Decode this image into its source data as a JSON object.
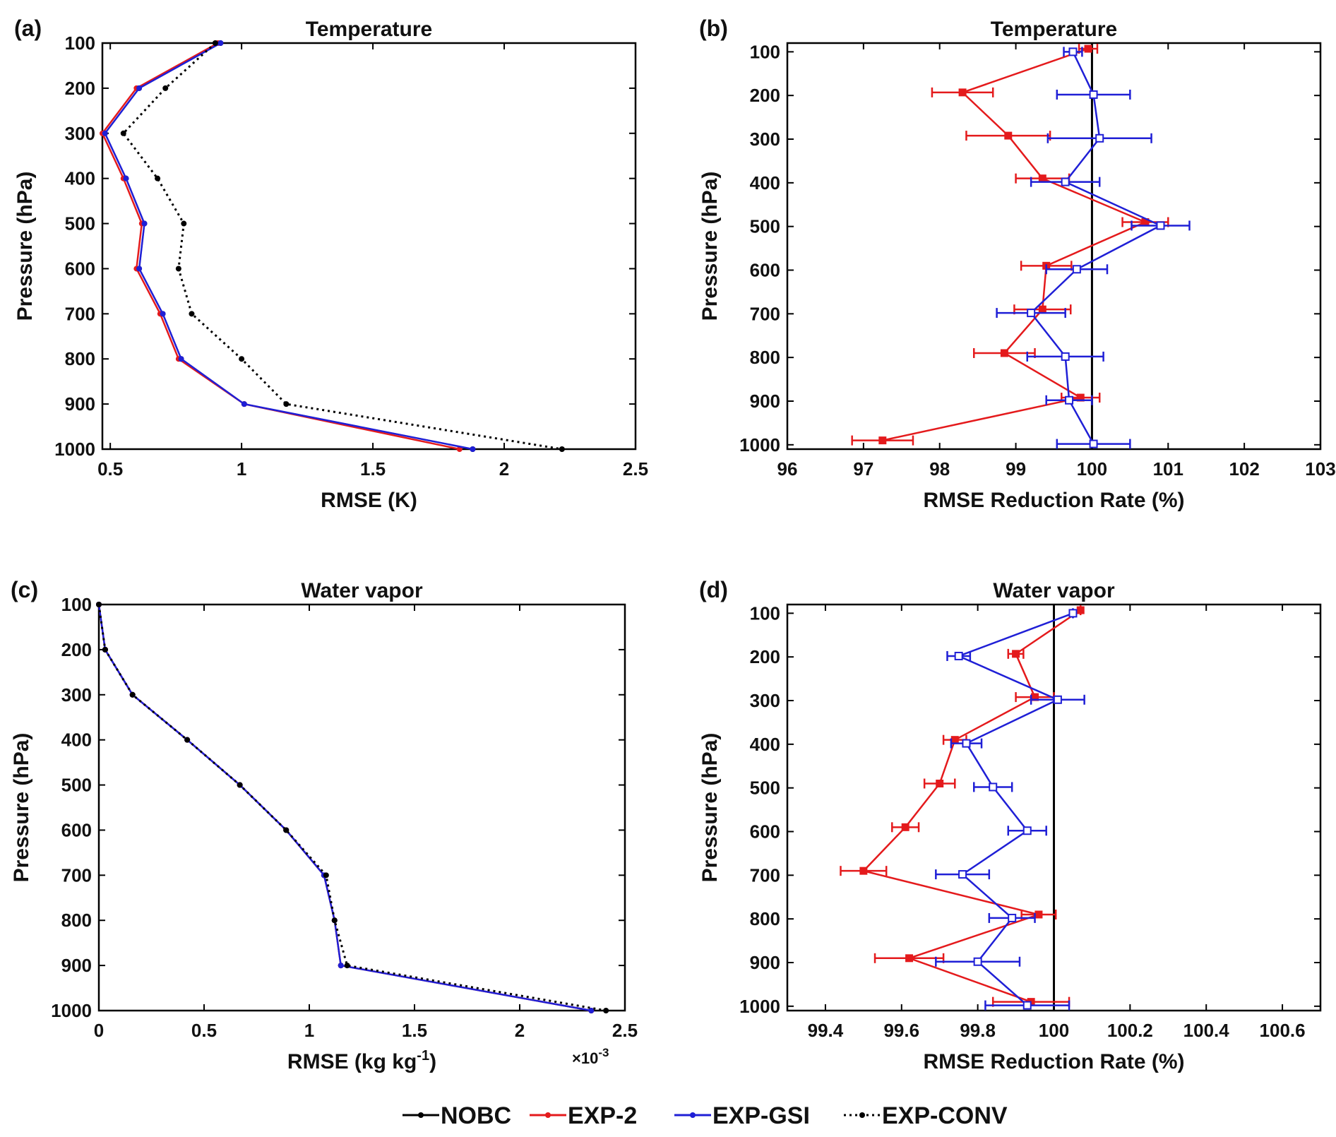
{
  "colors": {
    "NOBC": "#000000",
    "EXP-2": "#e41a1c",
    "EXP-GSI": "#1f1fd6",
    "EXP-CONV": "#000000"
  },
  "legend": [
    "NOBC",
    "EXP-2",
    "EXP-GSI",
    "EXP-CONV"
  ],
  "chart_data": [
    {
      "panel_label": "(a)",
      "type": "line",
      "title": "Temperature",
      "xlabel": "RMSE (K)",
      "ylabel": "Pressure (hPa)",
      "xlim": [
        0.47,
        2.5
      ],
      "ylim": [
        1000,
        100
      ],
      "xticks": [
        "0.5",
        "1",
        "1.5",
        "2",
        "2.5"
      ],
      "xtick_values": [
        0.5,
        1,
        1.5,
        2,
        2.5
      ],
      "yticks": [
        "100",
        "200",
        "300",
        "400",
        "500",
        "600",
        "700",
        "800",
        "900",
        "1000"
      ],
      "y": [
        100,
        200,
        300,
        400,
        500,
        600,
        700,
        800,
        900,
        1000
      ],
      "series": [
        {
          "name": "NOBC",
          "values": [
            0.92,
            0.61,
            0.48,
            0.56,
            0.63,
            0.61,
            0.7,
            0.77,
            1.01,
            1.88
          ]
        },
        {
          "name": "EXP-2",
          "values": [
            0.91,
            0.6,
            0.47,
            0.55,
            0.62,
            0.6,
            0.69,
            0.76,
            1.01,
            1.83
          ]
        },
        {
          "name": "EXP-GSI",
          "values": [
            0.92,
            0.61,
            0.48,
            0.56,
            0.63,
            0.61,
            0.7,
            0.77,
            1.01,
            1.88
          ]
        },
        {
          "name": "EXP-CONV",
          "values": [
            0.9,
            0.71,
            0.55,
            0.68,
            0.78,
            0.76,
            0.81,
            1.0,
            1.17,
            2.22
          ]
        }
      ]
    },
    {
      "panel_label": "(b)",
      "type": "line",
      "title": "Temperature",
      "xlabel": "RMSE Reduction Rate (%)",
      "ylabel": "Pressure (hPa)",
      "xlim": [
        96,
        103
      ],
      "ylim": [
        1010,
        80
      ],
      "xticks": [
        "96",
        "97",
        "98",
        "99",
        "100",
        "101",
        "102",
        "103"
      ],
      "xtick_values": [
        96,
        97,
        98,
        99,
        100,
        101,
        102,
        103
      ],
      "yticks": [
        "100",
        "200",
        "300",
        "400",
        "500",
        "600",
        "700",
        "800",
        "900",
        "1000"
      ],
      "reference_x": 100,
      "series": [
        {
          "name": "EXP-2",
          "y": [
            93,
            193,
            292,
            390,
            490,
            590,
            690,
            790,
            892,
            990
          ],
          "values": [
            99.95,
            98.3,
            98.9,
            99.35,
            100.7,
            99.4,
            99.35,
            98.85,
            99.85,
            97.25
          ],
          "err": [
            0.12,
            0.4,
            0.55,
            0.35,
            0.3,
            0.33,
            0.37,
            0.4,
            0.25,
            0.4
          ]
        },
        {
          "name": "EXP-GSI",
          "y": [
            100,
            198,
            298,
            398,
            498,
            598,
            698,
            798,
            898,
            998
          ],
          "values": [
            99.75,
            100.02,
            100.1,
            99.65,
            100.9,
            99.8,
            99.2,
            99.65,
            99.7,
            100.02
          ],
          "err": [
            0.12,
            0.48,
            0.68,
            0.45,
            0.38,
            0.4,
            0.45,
            0.5,
            0.3,
            0.48
          ]
        }
      ]
    },
    {
      "panel_label": "(c)",
      "type": "line",
      "title": "Water vapor",
      "xlabel": "RMSE (kg kg",
      "xlabel_sup": "-1",
      "xlabel_end": ")",
      "ylabel": "Pressure (hPa)",
      "xlim": [
        0,
        2.5
      ],
      "ylim": [
        1000,
        100
      ],
      "x_exponent": "×10",
      "x_exponent_sup": "-3",
      "xticks": [
        "0",
        "0.5",
        "1",
        "1.5",
        "2",
        "2.5"
      ],
      "xtick_values": [
        0,
        0.5,
        1,
        1.5,
        2,
        2.5
      ],
      "yticks": [
        "100",
        "200",
        "300",
        "400",
        "500",
        "600",
        "700",
        "800",
        "900",
        "1000"
      ],
      "y": [
        100,
        200,
        300,
        400,
        500,
        600,
        700,
        800,
        900,
        1000
      ],
      "series": [
        {
          "name": "NOBC",
          "values": [
            0,
            0.03,
            0.16,
            0.42,
            0.67,
            0.89,
            1.07,
            1.12,
            1.15,
            2.34
          ]
        },
        {
          "name": "EXP-2",
          "values": [
            0,
            0.03,
            0.16,
            0.42,
            0.67,
            0.89,
            1.07,
            1.12,
            1.15,
            2.34
          ]
        },
        {
          "name": "EXP-GSI",
          "values": [
            0,
            0.03,
            0.16,
            0.42,
            0.67,
            0.89,
            1.07,
            1.12,
            1.15,
            2.34
          ]
        },
        {
          "name": "EXP-CONV",
          "values": [
            0,
            0.03,
            0.16,
            0.42,
            0.67,
            0.89,
            1.08,
            1.12,
            1.18,
            2.41
          ]
        }
      ]
    },
    {
      "panel_label": "(d)",
      "type": "line",
      "title": "Water vapor",
      "xlabel": "RMSE Reduction Rate (%)",
      "ylabel": "Pressure (hPa)",
      "xlim": [
        99.3,
        100.7
      ],
      "ylim": [
        1010,
        80
      ],
      "xticks": [
        "99.4",
        "99.6",
        "99.8",
        "100",
        "100.2",
        "100.4",
        "100.6"
      ],
      "xtick_values": [
        99.4,
        99.6,
        99.8,
        100,
        100.2,
        100.4,
        100.6
      ],
      "yticks": [
        "100",
        "200",
        "300",
        "400",
        "500",
        "600",
        "700",
        "800",
        "900",
        "1000"
      ],
      "reference_x": 100,
      "series": [
        {
          "name": "EXP-2",
          "y": [
            93,
            193,
            292,
            390,
            490,
            590,
            690,
            790,
            890,
            990
          ],
          "values": [
            100.07,
            99.9,
            99.95,
            99.74,
            99.7,
            99.61,
            99.5,
            99.96,
            99.62,
            99.94
          ],
          "err": [
            0,
            0.02,
            0.05,
            0.03,
            0.04,
            0.035,
            0.06,
            0.045,
            0.09,
            0.1
          ]
        },
        {
          "name": "EXP-GSI",
          "y": [
            100,
            198,
            298,
            398,
            498,
            598,
            698,
            798,
            898,
            998
          ],
          "values": [
            100.05,
            99.75,
            100.01,
            99.77,
            99.84,
            99.93,
            99.76,
            99.89,
            99.8,
            99.93
          ],
          "err": [
            0,
            0.03,
            0.07,
            0.04,
            0.05,
            0.05,
            0.07,
            0.06,
            0.11,
            0.11
          ]
        }
      ]
    }
  ]
}
